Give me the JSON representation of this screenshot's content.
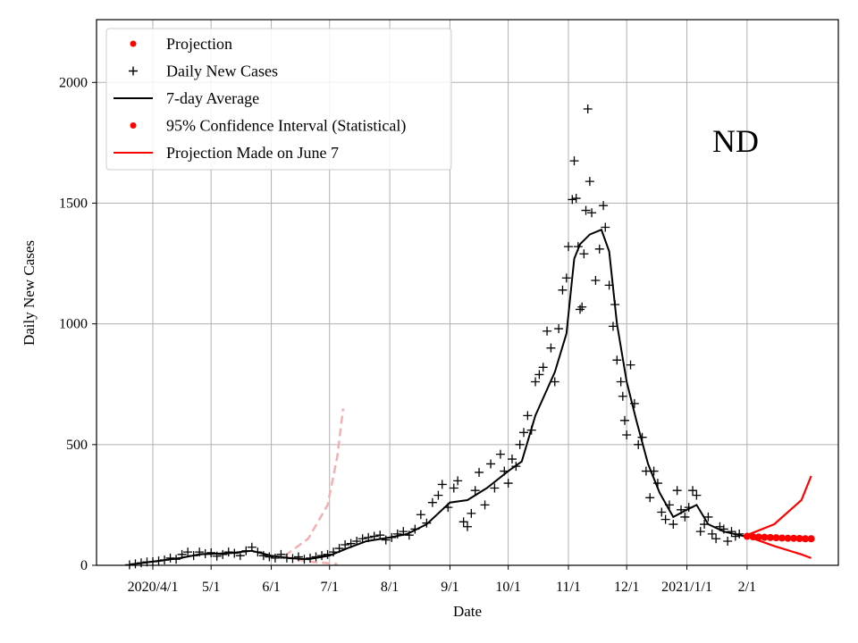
{
  "chart_data": {
    "type": "line",
    "xlabel": "Date",
    "ylabel": "Daily New Cases",
    "annotation": "ND",
    "ylim": [
      0,
      2260
    ],
    "xlim": [
      "2020-03-03",
      "2021-03-20"
    ],
    "y_ticks": [
      0,
      500,
      1000,
      1500,
      2000
    ],
    "x_ticks": [
      {
        "date": "2020-04-01",
        "label": "2020/4/1"
      },
      {
        "date": "2020-05-01",
        "label": "5/1"
      },
      {
        "date": "2020-06-01",
        "label": "6/1"
      },
      {
        "date": "2020-07-01",
        "label": "7/1"
      },
      {
        "date": "2020-08-01",
        "label": "8/1"
      },
      {
        "date": "2020-09-01",
        "label": "9/1"
      },
      {
        "date": "2020-10-01",
        "label": "10/1"
      },
      {
        "date": "2020-11-01",
        "label": "11/1"
      },
      {
        "date": "2020-12-01",
        "label": "12/1"
      },
      {
        "date": "2021-01-01",
        "label": "2021/1/1"
      },
      {
        "date": "2021-02-01",
        "label": "2/1"
      }
    ],
    "grid": true,
    "legend": {
      "position": "upper-left",
      "entries": [
        {
          "label": "Projection",
          "marker": "dot",
          "color": "#ff0000"
        },
        {
          "label": "Daily New Cases",
          "marker": "plus",
          "color": "#000000"
        },
        {
          "label": "7-day Average",
          "marker": "line",
          "color": "#000000"
        },
        {
          "label": "95% Confidence Interval (Statistical)",
          "marker": "dot",
          "color": "#ff0000"
        },
        {
          "label": "Projection Made on June 7",
          "marker": "line",
          "color": "#ff0000"
        }
      ]
    },
    "colors": {
      "cases": "#000000",
      "projection": "#ff0000",
      "old_projection": "#f4b0b0"
    },
    "series": [
      {
        "name": "Daily New Cases",
        "kind": "scatter",
        "points": [
          [
            "2020-03-20",
            2
          ],
          [
            "2020-03-23",
            6
          ],
          [
            "2020-03-26",
            10
          ],
          [
            "2020-03-29",
            14
          ],
          [
            "2020-04-01",
            15
          ],
          [
            "2020-04-04",
            18
          ],
          [
            "2020-04-07",
            22
          ],
          [
            "2020-04-10",
            30
          ],
          [
            "2020-04-13",
            25
          ],
          [
            "2020-04-16",
            45
          ],
          [
            "2020-04-19",
            55
          ],
          [
            "2020-04-22",
            40
          ],
          [
            "2020-04-25",
            55
          ],
          [
            "2020-04-28",
            48
          ],
          [
            "2020-05-01",
            52
          ],
          [
            "2020-05-04",
            38
          ],
          [
            "2020-05-07",
            45
          ],
          [
            "2020-05-10",
            55
          ],
          [
            "2020-05-13",
            50
          ],
          [
            "2020-05-16",
            40
          ],
          [
            "2020-05-19",
            60
          ],
          [
            "2020-05-22",
            75
          ],
          [
            "2020-05-25",
            55
          ],
          [
            "2020-05-28",
            40
          ],
          [
            "2020-05-31",
            35
          ],
          [
            "2020-06-03",
            30
          ],
          [
            "2020-06-06",
            45
          ],
          [
            "2020-06-09",
            30
          ],
          [
            "2020-06-12",
            28
          ],
          [
            "2020-06-15",
            35
          ],
          [
            "2020-06-18",
            25
          ],
          [
            "2020-06-21",
            30
          ],
          [
            "2020-06-24",
            35
          ],
          [
            "2020-06-27",
            40
          ],
          [
            "2020-06-30",
            45
          ],
          [
            "2020-07-03",
            55
          ],
          [
            "2020-07-06",
            70
          ],
          [
            "2020-07-09",
            85
          ],
          [
            "2020-07-12",
            90
          ],
          [
            "2020-07-15",
            100
          ],
          [
            "2020-07-18",
            110
          ],
          [
            "2020-07-21",
            115
          ],
          [
            "2020-07-24",
            120
          ],
          [
            "2020-07-27",
            125
          ],
          [
            "2020-07-30",
            105
          ],
          [
            "2020-08-02",
            115
          ],
          [
            "2020-08-05",
            130
          ],
          [
            "2020-08-08",
            140
          ],
          [
            "2020-08-11",
            125
          ],
          [
            "2020-08-14",
            150
          ],
          [
            "2020-08-17",
            210
          ],
          [
            "2020-08-20",
            175
          ],
          [
            "2020-08-23",
            260
          ],
          [
            "2020-08-26",
            290
          ],
          [
            "2020-08-28",
            335
          ],
          [
            "2020-08-31",
            240
          ],
          [
            "2020-09-03",
            320
          ],
          [
            "2020-09-05",
            350
          ],
          [
            "2020-09-08",
            180
          ],
          [
            "2020-09-10",
            160
          ],
          [
            "2020-09-12",
            215
          ],
          [
            "2020-09-14",
            310
          ],
          [
            "2020-09-16",
            385
          ],
          [
            "2020-09-19",
            250
          ],
          [
            "2020-09-22",
            420
          ],
          [
            "2020-09-24",
            320
          ],
          [
            "2020-09-27",
            460
          ],
          [
            "2020-09-29",
            390
          ],
          [
            "2020-10-01",
            340
          ],
          [
            "2020-10-03",
            440
          ],
          [
            "2020-10-05",
            410
          ],
          [
            "2020-10-07",
            500
          ],
          [
            "2020-10-09",
            550
          ],
          [
            "2020-10-11",
            620
          ],
          [
            "2020-10-13",
            560
          ],
          [
            "2020-10-15",
            760
          ],
          [
            "2020-10-17",
            790
          ],
          [
            "2020-10-19",
            820
          ],
          [
            "2020-10-21",
            970
          ],
          [
            "2020-10-23",
            900
          ],
          [
            "2020-10-25",
            760
          ],
          [
            "2020-10-27",
            980
          ],
          [
            "2020-10-29",
            1140
          ],
          [
            "2020-10-31",
            1190
          ],
          [
            "2020-11-01",
            1320
          ],
          [
            "2020-11-03",
            1515
          ],
          [
            "2020-11-04",
            1675
          ],
          [
            "2020-11-05",
            1520
          ],
          [
            "2020-11-06",
            1320
          ],
          [
            "2020-11-07",
            1060
          ],
          [
            "2020-11-08",
            1070
          ],
          [
            "2020-11-09",
            1290
          ],
          [
            "2020-11-10",
            1470
          ],
          [
            "2020-11-11",
            1890
          ],
          [
            "2020-11-12",
            1590
          ],
          [
            "2020-11-13",
            1460
          ],
          [
            "2020-11-15",
            1180
          ],
          [
            "2020-11-17",
            1310
          ],
          [
            "2020-11-19",
            1490
          ],
          [
            "2020-11-20",
            1400
          ],
          [
            "2020-11-22",
            1160
          ],
          [
            "2020-11-24",
            990
          ],
          [
            "2020-11-25",
            1080
          ],
          [
            "2020-11-26",
            850
          ],
          [
            "2020-11-28",
            760
          ],
          [
            "2020-11-29",
            700
          ],
          [
            "2020-11-30",
            600
          ],
          [
            "2020-12-01",
            540
          ],
          [
            "2020-12-03",
            830
          ],
          [
            "2020-12-05",
            670
          ],
          [
            "2020-12-07",
            500
          ],
          [
            "2020-12-09",
            530
          ],
          [
            "2020-12-11",
            390
          ],
          [
            "2020-12-13",
            280
          ],
          [
            "2020-12-15",
            390
          ],
          [
            "2020-12-17",
            340
          ],
          [
            "2020-12-19",
            220
          ],
          [
            "2020-12-21",
            190
          ],
          [
            "2020-12-23",
            250
          ],
          [
            "2020-12-25",
            170
          ],
          [
            "2020-12-27",
            310
          ],
          [
            "2020-12-29",
            230
          ],
          [
            "2020-12-31",
            200
          ],
          [
            "2021-01-02",
            240
          ],
          [
            "2021-01-04",
            310
          ],
          [
            "2021-01-06",
            290
          ],
          [
            "2021-01-08",
            140
          ],
          [
            "2021-01-10",
            170
          ],
          [
            "2021-01-12",
            200
          ],
          [
            "2021-01-14",
            130
          ],
          [
            "2021-01-16",
            110
          ],
          [
            "2021-01-18",
            160
          ],
          [
            "2021-01-20",
            150
          ],
          [
            "2021-01-22",
            100
          ],
          [
            "2021-01-24",
            140
          ],
          [
            "2021-01-26",
            120
          ],
          [
            "2021-01-28",
            130
          ]
        ]
      },
      {
        "name": "7-day Average",
        "kind": "line",
        "points": [
          [
            "2020-03-20",
            3
          ],
          [
            "2020-04-01",
            15
          ],
          [
            "2020-04-15",
            30
          ],
          [
            "2020-04-25",
            45
          ],
          [
            "2020-05-10",
            50
          ],
          [
            "2020-05-22",
            60
          ],
          [
            "2020-06-01",
            40
          ],
          [
            "2020-06-10",
            30
          ],
          [
            "2020-06-20",
            25
          ],
          [
            "2020-07-01",
            40
          ],
          [
            "2020-07-10",
            70
          ],
          [
            "2020-07-20",
            100
          ],
          [
            "2020-08-01",
            115
          ],
          [
            "2020-08-10",
            130
          ],
          [
            "2020-08-20",
            170
          ],
          [
            "2020-09-01",
            260
          ],
          [
            "2020-09-10",
            270
          ],
          [
            "2020-09-20",
            320
          ],
          [
            "2020-10-01",
            390
          ],
          [
            "2020-10-08",
            430
          ],
          [
            "2020-10-15",
            620
          ],
          [
            "2020-10-25",
            800
          ],
          [
            "2020-10-31",
            960
          ],
          [
            "2020-11-04",
            1270
          ],
          [
            "2020-11-07",
            1330
          ],
          [
            "2020-11-12",
            1370
          ],
          [
            "2020-11-18",
            1390
          ],
          [
            "2020-11-22",
            1300
          ],
          [
            "2020-11-26",
            1000
          ],
          [
            "2020-12-01",
            760
          ],
          [
            "2020-12-06",
            600
          ],
          [
            "2020-12-12",
            420
          ],
          [
            "2020-12-18",
            300
          ],
          [
            "2020-12-25",
            200
          ],
          [
            "2021-01-01",
            230
          ],
          [
            "2021-01-06",
            250
          ],
          [
            "2021-01-12",
            170
          ],
          [
            "2021-01-20",
            140
          ],
          [
            "2021-01-31",
            120
          ]
        ]
      },
      {
        "name": "Projection",
        "kind": "dots",
        "points": [
          [
            "2021-02-01",
            120
          ],
          [
            "2021-02-04",
            118
          ],
          [
            "2021-02-07",
            117
          ],
          [
            "2021-02-10",
            116
          ],
          [
            "2021-02-13",
            115
          ],
          [
            "2021-02-16",
            114
          ],
          [
            "2021-02-19",
            113
          ],
          [
            "2021-02-22",
            112
          ],
          [
            "2021-02-25",
            112
          ],
          [
            "2021-02-28",
            111
          ],
          [
            "2021-03-03",
            110
          ],
          [
            "2021-03-06",
            110
          ]
        ]
      },
      {
        "name": "95% Confidence Interval (Statistical)",
        "kind": "band",
        "upper": [
          [
            "2021-02-01",
            125
          ],
          [
            "2021-02-15",
            170
          ],
          [
            "2021-03-01",
            270
          ],
          [
            "2021-03-06",
            370
          ]
        ],
        "lower": [
          [
            "2021-02-01",
            120
          ],
          [
            "2021-02-15",
            80
          ],
          [
            "2021-03-01",
            45
          ],
          [
            "2021-03-06",
            30
          ]
        ]
      },
      {
        "name": "Projection Made on June 7",
        "kind": "band",
        "upper": [
          [
            "2020-06-08",
            40
          ],
          [
            "2020-06-20",
            110
          ],
          [
            "2020-06-30",
            250
          ],
          [
            "2020-07-05",
            450
          ],
          [
            "2020-07-08",
            650
          ]
        ],
        "lower": [
          [
            "2020-06-08",
            35
          ],
          [
            "2020-06-20",
            15
          ],
          [
            "2020-07-01",
            8
          ],
          [
            "2020-07-05",
            5
          ]
        ]
      }
    ]
  }
}
